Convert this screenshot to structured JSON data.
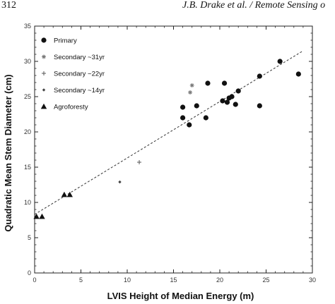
{
  "page": {
    "page_number": "312",
    "running_head": "J.B. Drake et al. / Remote Sensing o"
  },
  "chart_data": {
    "type": "scatter",
    "title": "",
    "xlabel": "LVIS Height of Median Energy (m)",
    "ylabel": "Quadratic Mean Stem Diameter (cm)",
    "xlim": [
      0,
      30
    ],
    "ylim": [
      0,
      35
    ],
    "x_ticks": [
      "0",
      "5",
      "10",
      "15",
      "20",
      "25",
      "30"
    ],
    "y_ticks": [
      "0",
      "5",
      "10",
      "15",
      "20",
      "25",
      "30",
      "35"
    ],
    "grid": false,
    "legend_position": "top-left",
    "series": [
      {
        "name": "Primary",
        "marker": "circle",
        "color": "#111111",
        "points": [
          [
            16.0,
            23.5
          ],
          [
            16.0,
            22.0
          ],
          [
            16.7,
            21.0
          ],
          [
            17.5,
            23.7
          ],
          [
            18.5,
            22.0
          ],
          [
            18.7,
            26.9
          ],
          [
            20.3,
            24.4
          ],
          [
            20.5,
            26.9
          ],
          [
            20.8,
            24.2
          ],
          [
            21.0,
            24.8
          ],
          [
            21.3,
            25.0
          ],
          [
            21.7,
            23.9
          ],
          [
            22.0,
            25.8
          ],
          [
            24.3,
            27.9
          ],
          [
            24.3,
            23.7
          ],
          [
            26.5,
            30.0
          ],
          [
            28.5,
            28.2
          ]
        ]
      },
      {
        "name": "Secondary ~31yr",
        "marker": "star",
        "color": "#777777",
        "points": [
          [
            16.8,
            25.6
          ],
          [
            17.0,
            26.6
          ]
        ]
      },
      {
        "name": "Secondary ~22yr",
        "marker": "plus",
        "color": "#555555",
        "points": [
          [
            11.3,
            15.7
          ]
        ]
      },
      {
        "name": "Secondary ~14yr",
        "marker": "diamond",
        "color": "#444444",
        "points": [
          [
            9.2,
            12.9
          ]
        ]
      },
      {
        "name": "Agroforesty",
        "marker": "triangle",
        "color": "#111111",
        "points": [
          [
            0.2,
            8.0
          ],
          [
            0.8,
            8.0
          ],
          [
            3.2,
            11.1
          ],
          [
            3.8,
            11.1
          ]
        ]
      }
    ],
    "fit_line": {
      "style": "dashed",
      "x": [
        0,
        29
      ],
      "y": [
        8.3,
        31.5
      ]
    }
  }
}
